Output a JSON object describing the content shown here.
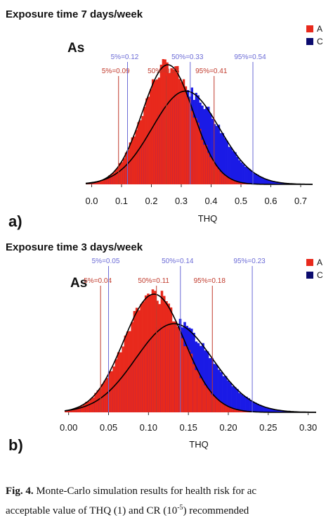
{
  "caption": {
    "label": "Fig. 4.",
    "line1": "Monte-Carlo simulation results for health risk for ac",
    "line2_pre": "acceptable value of THQ (1) and CR (10",
    "line2_sup": "-5",
    "line2_post": ") recommended"
  },
  "colors": {
    "adult": "#e8291c",
    "child": "#1a1ae6",
    "adult_line": "#c0392b",
    "child_line": "#6b6bd6",
    "curve": "#000000"
  },
  "chart_data": [
    {
      "type": "bar",
      "panel_label": "a)",
      "title": "Exposure time 7 days/week",
      "element": "As",
      "xlabel": "THQ",
      "ylabel": "",
      "xlim": [
        -0.02,
        0.74
      ],
      "xticks": [
        "0.0",
        "0.1",
        "0.2",
        "0.3",
        "0.4",
        "0.5",
        "0.6",
        "0.7"
      ],
      "legend": {
        "position": "top-right",
        "entries": [
          "A",
          "C"
        ]
      },
      "series": [
        {
          "name": "A",
          "color": "#e8291c",
          "mean": 0.255,
          "sd": 0.085,
          "peak": 1.0
        },
        {
          "name": "C",
          "color": "#1a1ae6",
          "mean": 0.315,
          "sd": 0.112,
          "peak": 0.78
        }
      ],
      "percentiles": [
        {
          "series": "A",
          "label": "5%=0.09",
          "value": 0.09
        },
        {
          "series": "A",
          "label": "50%=0.25",
          "value": 0.25
        },
        {
          "series": "A",
          "label": "95%=0.41",
          "value": 0.41
        },
        {
          "series": "C",
          "label": "5%=0.12",
          "value": 0.12
        },
        {
          "series": "C",
          "label": "50%=0.33",
          "value": 0.33
        },
        {
          "series": "C",
          "label": "95%=0.54",
          "value": 0.54
        }
      ]
    },
    {
      "type": "bar",
      "panel_label": "b)",
      "title": "Exposure time 3 days/week",
      "element": "As",
      "xlabel": "THQ",
      "ylabel": "",
      "xlim": [
        -0.005,
        0.31
      ],
      "xticks": [
        "0.00",
        "0.05",
        "0.10",
        "0.15",
        "0.20",
        "0.25",
        "0.30"
      ],
      "legend": {
        "position": "top-right",
        "entries": [
          "A",
          "C"
        ]
      },
      "series": [
        {
          "name": "A",
          "color": "#e8291c",
          "mean": 0.107,
          "sd": 0.038,
          "peak": 1.0
        },
        {
          "name": "C",
          "color": "#1a1ae6",
          "mean": 0.132,
          "sd": 0.048,
          "peak": 0.75
        }
      ],
      "percentiles": [
        {
          "series": "A",
          "label": "5%=0.04",
          "value": 0.04
        },
        {
          "series": "A",
          "label": "50%=0.11",
          "value": 0.11
        },
        {
          "series": "A",
          "label": "95%=0.18",
          "value": 0.18
        },
        {
          "series": "C",
          "label": "5%=0.05",
          "value": 0.05
        },
        {
          "series": "C",
          "label": "50%=0.14",
          "value": 0.14
        },
        {
          "series": "C",
          "label": "95%=0.23",
          "value": 0.23
        }
      ]
    }
  ]
}
